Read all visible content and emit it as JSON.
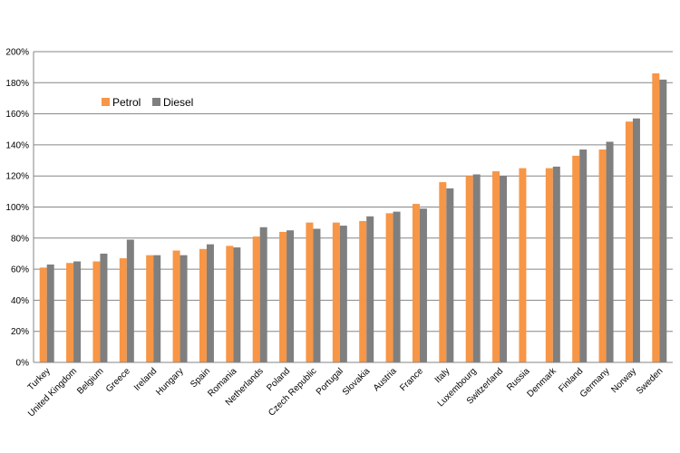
{
  "chart_data": {
    "type": "bar",
    "categories": [
      "Turkey",
      "United Kingdom",
      "Belgium",
      "Greece",
      "Ireland",
      "Hungary",
      "Spain",
      "Romania",
      "Netherlands",
      "Poland",
      "Czech Republic",
      "Portugal",
      "Slovakia",
      "Austria",
      "France",
      "Italy",
      "Luxembourg",
      "Switzerland",
      "Russia",
      "Denmark",
      "Finland",
      "Germany",
      "Norway",
      "Sweden"
    ],
    "series": [
      {
        "name": "Petrol",
        "color": "#F79646",
        "values": [
          61,
          64,
          65,
          67,
          69,
          72,
          73,
          75,
          81,
          84,
          90,
          90,
          91,
          96,
          102,
          116,
          120,
          123,
          125,
          125,
          133,
          137,
          155,
          186
        ]
      },
      {
        "name": "Diesel",
        "color": "#7F7F7F",
        "values": [
          63,
          65,
          70,
          79,
          69,
          69,
          76,
          74,
          87,
          85,
          86,
          88,
          94,
          97,
          99,
          112,
          121,
          120,
          null,
          126,
          137,
          142,
          157,
          182
        ]
      }
    ],
    "yticks": [
      "0%",
      "20%",
      "40%",
      "60%",
      "80%",
      "100%",
      "120%",
      "140%",
      "160%",
      "180%",
      "200%"
    ],
    "ylim": [
      0,
      200
    ],
    "grid": true,
    "legend": "top-left",
    "title": "",
    "xlabel": "",
    "ylabel": ""
  }
}
